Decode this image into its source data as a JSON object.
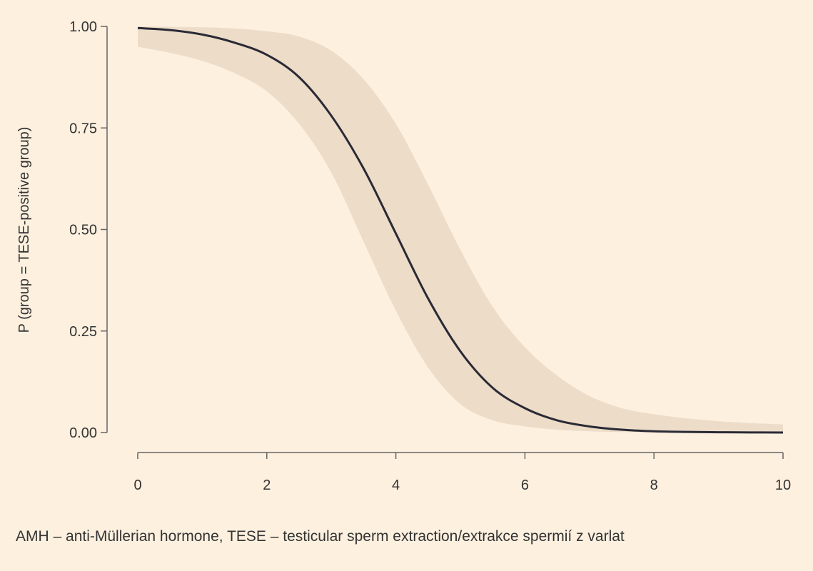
{
  "chart_data": {
    "type": "line",
    "title": "",
    "xlabel": "",
    "ylabel": "P (group = TESE-positive group)",
    "xlim": [
      0,
      10
    ],
    "ylim": [
      0,
      1
    ],
    "xticks": [
      "0",
      "2",
      "4",
      "6",
      "8",
      "10"
    ],
    "yticks": [
      "0.00",
      "0.25",
      "0.50",
      "0.75",
      "1.00"
    ],
    "grid": false,
    "series": [
      {
        "x": [
          0,
          0.5,
          1,
          1.5,
          2,
          2.5,
          3,
          3.5,
          4,
          4.5,
          5,
          5.5,
          6,
          6.5,
          7,
          7.5,
          8,
          8.5,
          9,
          9.5,
          10
        ],
        "y": [
          0.996,
          0.991,
          0.98,
          0.96,
          0.93,
          0.875,
          0.78,
          0.65,
          0.49,
          0.33,
          0.2,
          0.11,
          0.06,
          0.03,
          0.015,
          0.007,
          0.003,
          0.0015,
          0.0007,
          0.0003,
          0.0001
        ],
        "color": "#2a2a35"
      }
    ],
    "confidence_band": {
      "x": [
        0,
        0.5,
        1,
        1.5,
        2,
        2.5,
        3,
        3.5,
        4,
        4.5,
        5,
        5.5,
        6,
        6.5,
        7,
        7.5,
        8,
        8.5,
        9,
        9.5,
        10
      ],
      "lower": [
        0.95,
        0.935,
        0.915,
        0.885,
        0.84,
        0.76,
        0.64,
        0.47,
        0.3,
        0.16,
        0.07,
        0.03,
        0.015,
        0.007,
        0.003,
        0.001,
        0.0005,
        0.0002,
        0.0001,
        0.0,
        0.0
      ],
      "upper": [
        1.0,
        0.999,
        0.998,
        0.995,
        0.988,
        0.975,
        0.94,
        0.87,
        0.76,
        0.61,
        0.45,
        0.31,
        0.21,
        0.14,
        0.09,
        0.06,
        0.045,
        0.035,
        0.028,
        0.023,
        0.02
      ],
      "color": "#ecdcc8"
    }
  },
  "caption": "AMH – anti-Müllerian hormone, TESE – testicular sperm extraction/extrakce spermií z varlat"
}
